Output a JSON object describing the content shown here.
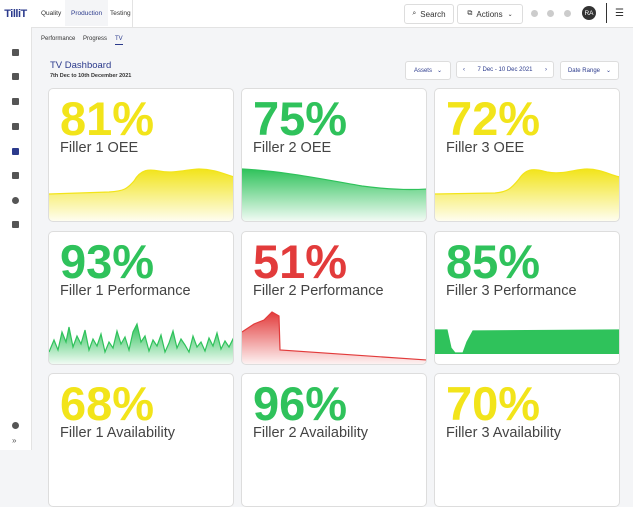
{
  "nav": {
    "logo": "TilliT",
    "tabs": [
      "Quality",
      "Production",
      "Testing"
    ],
    "search": "Search",
    "actions": "Actions",
    "avatar": "RA"
  },
  "subtabs": [
    "Performance",
    "Progress",
    "TV"
  ],
  "header": {
    "title": "TV Dashboard",
    "subtitle": "7th Dec to 10th December 2021"
  },
  "filters": {
    "assets": "Assets",
    "date": "7 Dec - 10 Dec 2021",
    "range": "Date Range"
  },
  "cards": [
    {
      "value": "81%",
      "label": "Filler 1 OEE",
      "color": "#f2e41a"
    },
    {
      "value": "75%",
      "label": "Filler 2 OEE",
      "color": "#2fc25b"
    },
    {
      "value": "72%",
      "label": "Filler 3 OEE",
      "color": "#f2e41a"
    },
    {
      "value": "93%",
      "label": "Filler 1 Performance",
      "color": "#2fc25b"
    },
    {
      "value": "51%",
      "label": "Filler 2 Performance",
      "color": "#e23b3b"
    },
    {
      "value": "85%",
      "label": "Filler 3 Performance",
      "color": "#2fc25b"
    },
    {
      "value": "68%",
      "label": "Filler 1 Availability",
      "color": "#f2e41a"
    },
    {
      "value": "96%",
      "label": "Filler 2 Availability",
      "color": "#2fc25b"
    },
    {
      "value": "70%",
      "label": "Filler 3 Availability",
      "color": "#f2e41a"
    }
  ]
}
